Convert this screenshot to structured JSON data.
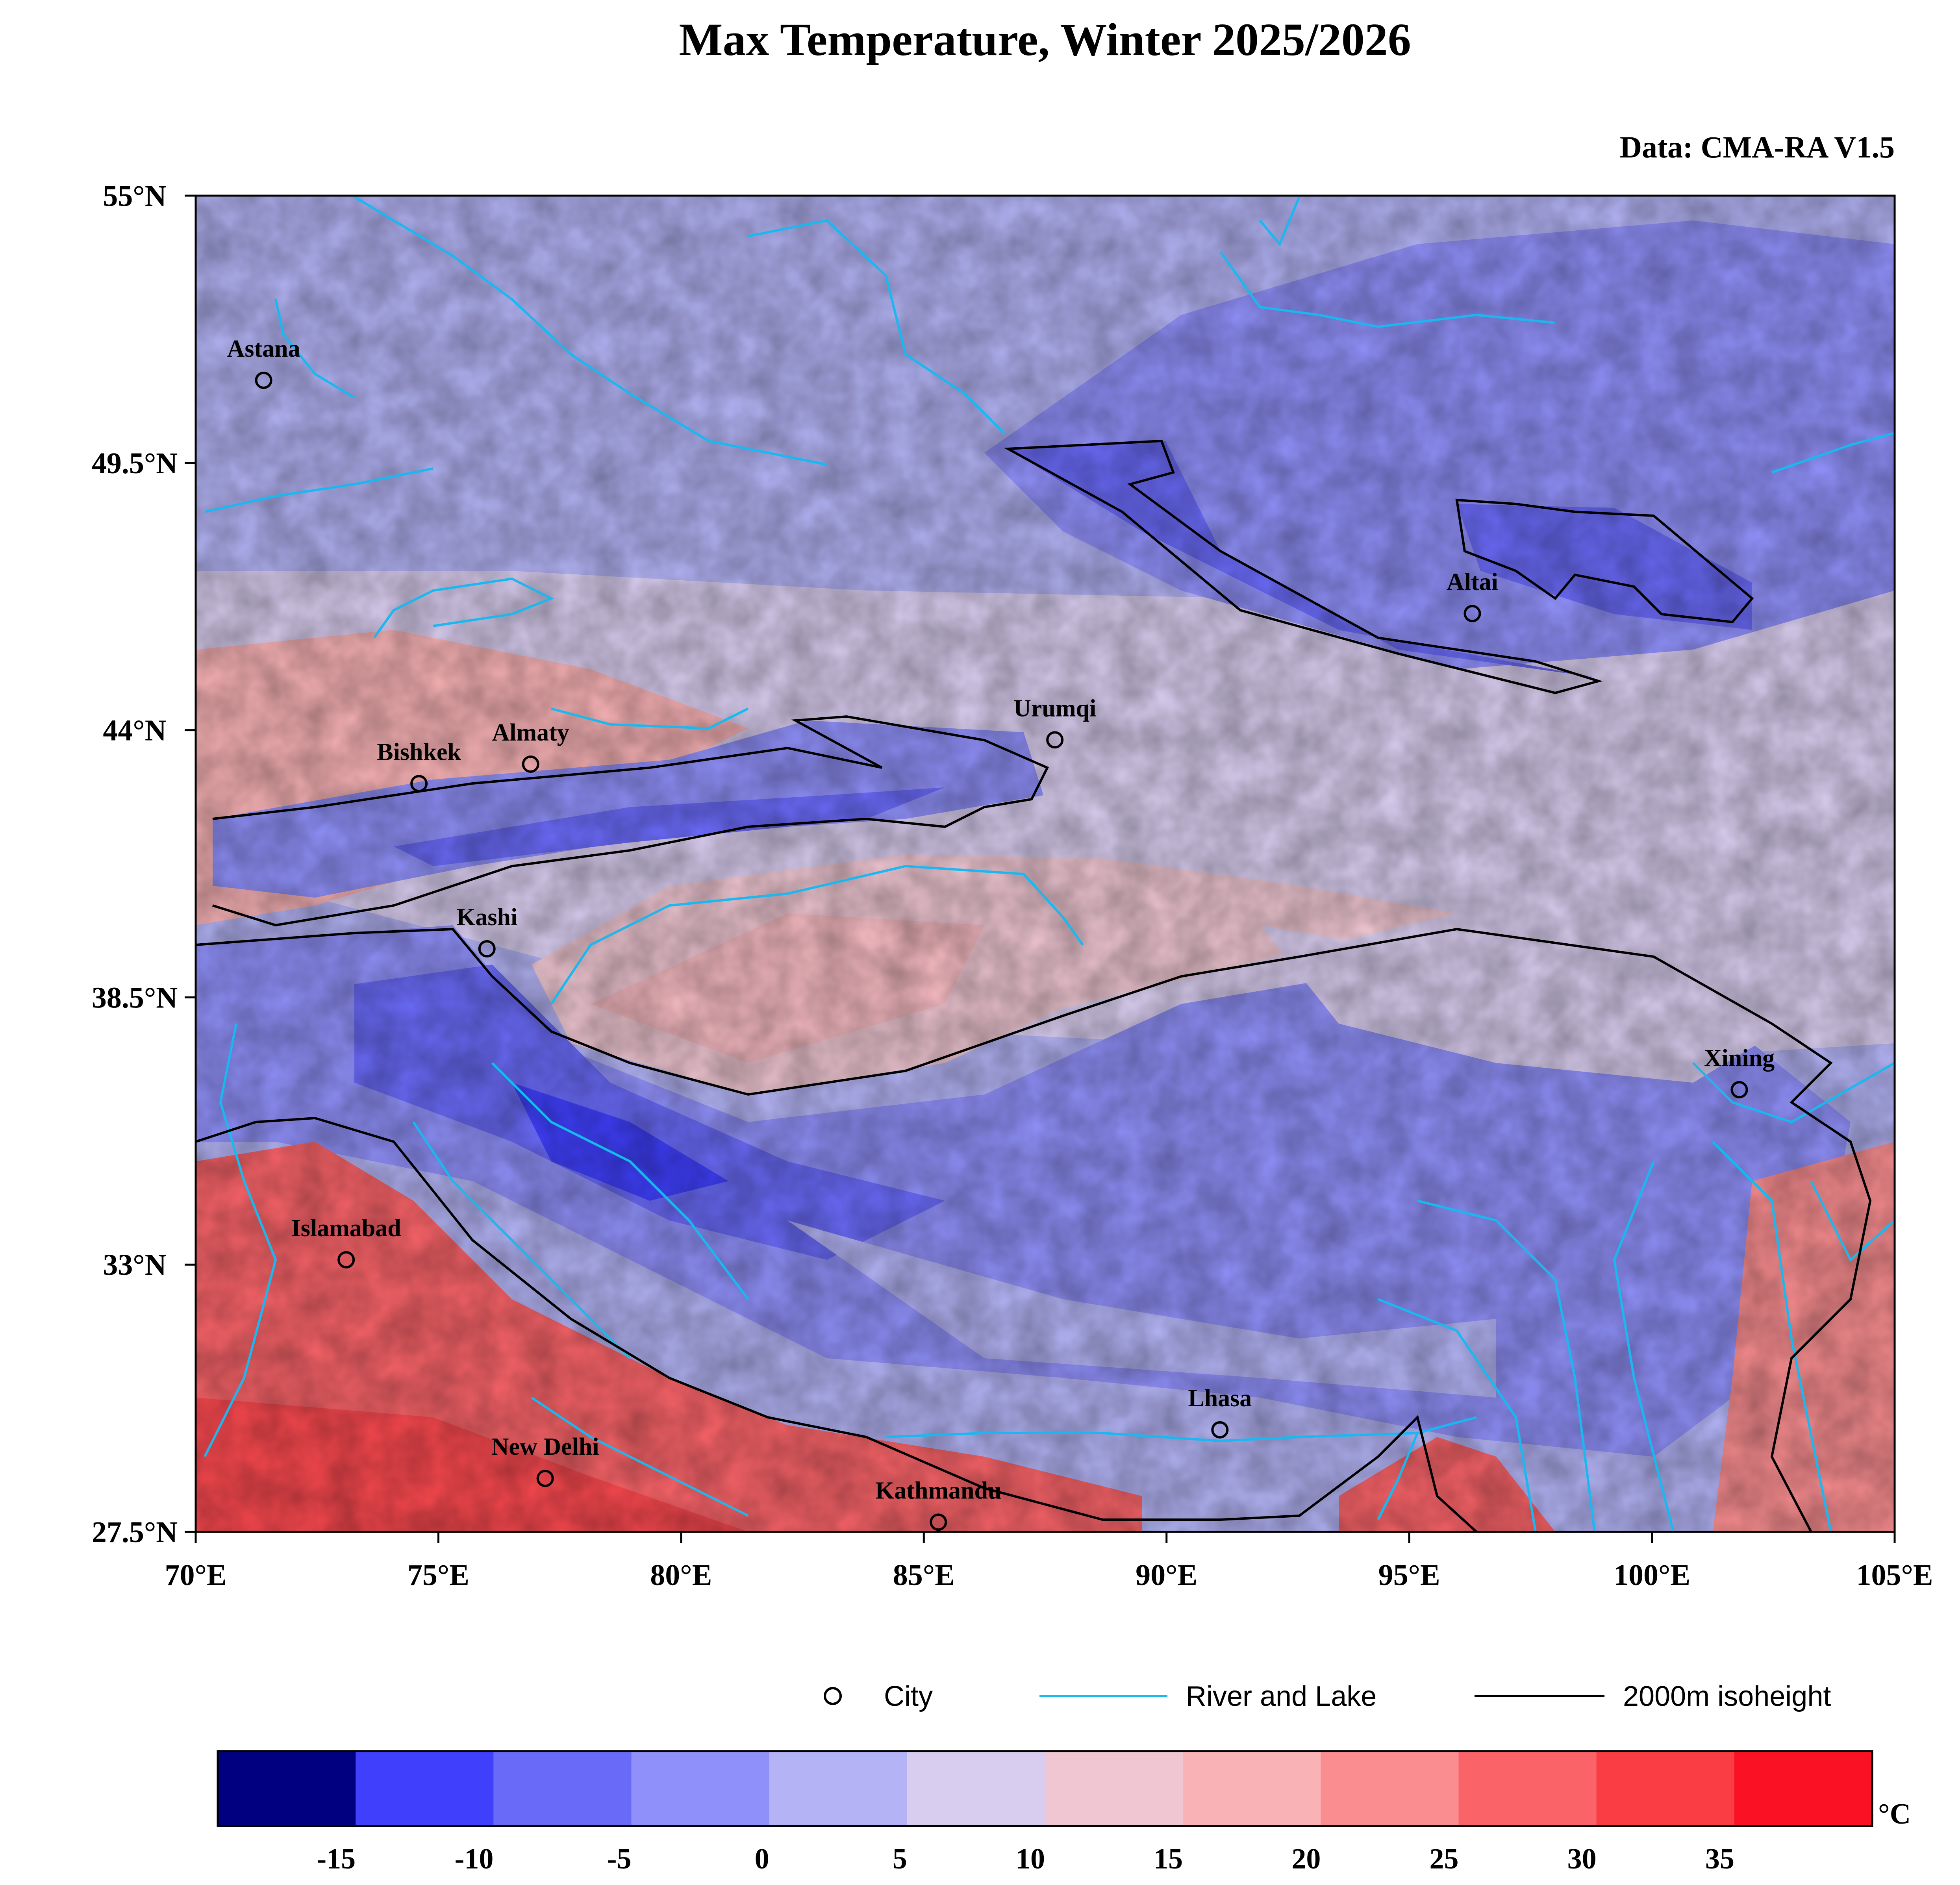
{
  "title": "Max Temperature, Winter 2025/2026",
  "source": "Data: CMA-RA V1.5",
  "map": {
    "lon_range": [
      70,
      105
    ],
    "lat_range": [
      27.5,
      55
    ],
    "x_ticks": [
      {
        "value": 70,
        "label": "70°E"
      },
      {
        "value": 75,
        "label": "75°E"
      },
      {
        "value": 80,
        "label": "80°E"
      },
      {
        "value": 85,
        "label": "85°E"
      },
      {
        "value": 90,
        "label": "90°E"
      },
      {
        "value": 95,
        "label": "95°E"
      },
      {
        "value": 100,
        "label": "100°E"
      },
      {
        "value": 105,
        "label": "105°E"
      }
    ],
    "y_ticks": [
      {
        "value": 55,
        "label": "55°N"
      },
      {
        "value": 49.5,
        "label": "49.5°N"
      },
      {
        "value": 44,
        "label": "44°N"
      },
      {
        "value": 38.5,
        "label": "38.5°N"
      },
      {
        "value": 33,
        "label": "33°N"
      },
      {
        "value": 27.5,
        "label": "27.5°N"
      }
    ],
    "colors": {
      "river": "#1ab8f0",
      "isoheight": "#000000",
      "frame": "#000000"
    },
    "cities": [
      {
        "name": "Astana",
        "lon": 71.4,
        "lat": 51.2
      },
      {
        "name": "Bishkek",
        "lon": 74.6,
        "lat": 42.9
      },
      {
        "name": "Almaty",
        "lon": 76.9,
        "lat": 43.3
      },
      {
        "name": "Kashi",
        "lon": 76.0,
        "lat": 39.5
      },
      {
        "name": "Urumqi",
        "lon": 87.7,
        "lat": 43.8
      },
      {
        "name": "Altai",
        "lon": 96.3,
        "lat": 46.4
      },
      {
        "name": "Xining",
        "lon": 101.8,
        "lat": 36.6
      },
      {
        "name": "Islamabad",
        "lon": 73.1,
        "lat": 33.1
      },
      {
        "name": "New Delhi",
        "lon": 77.2,
        "lat": 28.6
      },
      {
        "name": "Kathmandu",
        "lon": 85.3,
        "lat": 27.7
      },
      {
        "name": "Lhasa",
        "lon": 91.1,
        "lat": 29.6
      }
    ]
  },
  "legend": {
    "city": "City",
    "river": "River and Lake",
    "isoheight": "2000m isoheight"
  },
  "colorbar": {
    "unit": "°C",
    "bins": [
      "#000080",
      "#3f3ffc",
      "#6a6af8",
      "#9090fa",
      "#b3b3f5",
      "#d9cdef",
      "#efc6d2",
      "#f9b3b6",
      "#f98d90",
      "#fa6469",
      "#fa3d44",
      "#fa1224"
    ],
    "tick_labels": [
      "-15",
      "-10",
      "-5",
      "0",
      "5",
      "10",
      "15",
      "20",
      "25",
      "30",
      "35"
    ]
  }
}
